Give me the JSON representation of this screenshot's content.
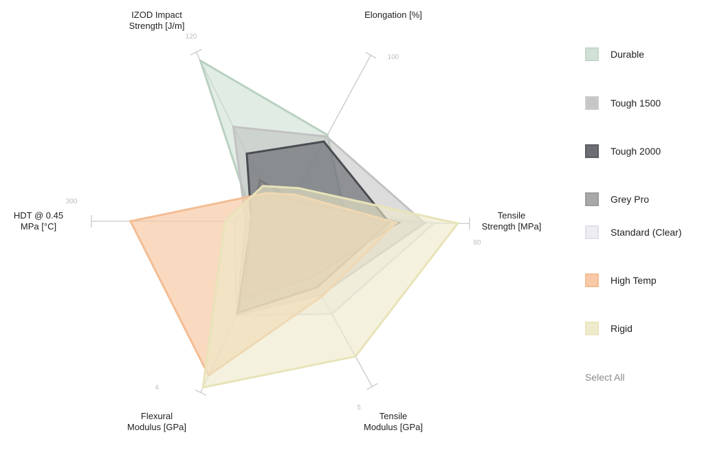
{
  "chart_data": {
    "type": "radar",
    "axes": [
      {
        "label_lines": [
          "IZOD Impact",
          "Strength [J/m]"
        ],
        "max": 120,
        "tick_label": "120"
      },
      {
        "label_lines": [
          "Elongation [%]"
        ],
        "max": 100,
        "tick_label": "100"
      },
      {
        "label_lines": [
          "Tensile",
          "Strength [MPa]"
        ],
        "max": 80,
        "tick_label": "80"
      },
      {
        "label_lines": [
          "Tensile",
          "Modulus [GPa]"
        ],
        "max": 5,
        "tick_label": "5"
      },
      {
        "label_lines": [
          "Flexural",
          "Modulus [GPa]"
        ],
        "max": 4,
        "tick_label": "4"
      },
      {
        "label_lines": [
          "HDT @ 0.45",
          "MPa [°C]"
        ],
        "max": 300,
        "tick_label": "300"
      }
    ],
    "series": [
      {
        "name": "Durable",
        "values": [
          114,
          52,
          28,
          1.26,
          1.26,
          43
        ],
        "fill": "#c9dccf",
        "stroke": "#b9d1c0",
        "fill_opacity": 0.55,
        "z": 1
      },
      {
        "name": "Tough 1500",
        "values": [
          67,
          51,
          61,
          2.22,
          2.19,
          55
        ],
        "fill": "#b9b9b9",
        "stroke": "#c2c2c2",
        "fill_opacity": 0.5,
        "z": 2
      },
      {
        "name": "Tough 2000",
        "values": [
          48,
          48,
          46,
          2.0,
          2.14,
          46
        ],
        "fill": "#5c5f66",
        "stroke": "#4a4c51",
        "fill_opacity": 0.6,
        "z": 3
      },
      {
        "name": "Grey Pro",
        "values": [
          29,
          13,
          50,
          1.7,
          1.79,
          48
        ],
        "fill": "#8c8c8c",
        "stroke": "#7a7a7a",
        "fill_opacity": 0.45,
        "z": 4
      },
      {
        "name": "Standard (Clear)",
        "values": [
          25,
          7,
          65,
          2.8,
          2.2,
          73
        ],
        "fill": "#ebebf2",
        "stroke": "#dcdce6",
        "fill_opacity": 0.55,
        "z": 0
      },
      {
        "name": "High Temp",
        "values": [
          20,
          16,
          49,
          2.27,
          3.6,
          238
        ],
        "fill": "#f8c9a6",
        "stroke": "#f3bd93",
        "fill_opacity": 0.7,
        "z": 5
      },
      {
        "name": "Rigid",
        "values": [
          25,
          20,
          75,
          4.09,
          3.88,
          88
        ],
        "fill": "#ede9c8",
        "stroke": "#e8e3b8",
        "fill_opacity": 0.6,
        "z": 6
      }
    ]
  },
  "legend": {
    "items": [
      {
        "label": "Durable"
      },
      {
        "label": "Tough 1500"
      },
      {
        "label": "Tough 2000"
      },
      {
        "label": "Grey Pro"
      },
      {
        "label": "Standard (Clear)"
      },
      {
        "label": "High Temp"
      },
      {
        "label": "Rigid"
      }
    ],
    "select_all": "Select All"
  }
}
